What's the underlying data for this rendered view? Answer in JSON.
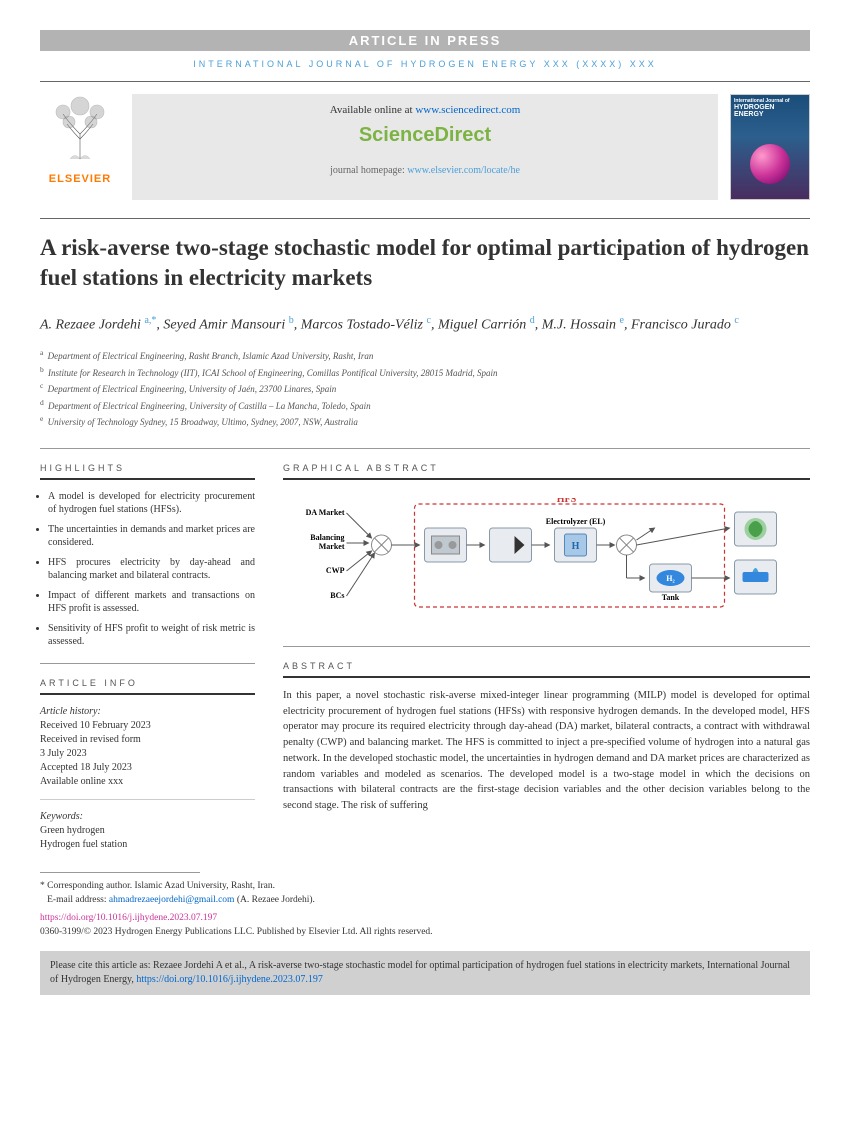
{
  "banner": "ARTICLE IN PRESS",
  "journal_header": "INTERNATIONAL JOURNAL OF HYDROGEN ENERGY XXX (XXXX) XXX",
  "elsevier_label": "ELSEVIER",
  "available_prefix": "Available online at ",
  "available_link": "www.sciencedirect.com",
  "sd_logo": "ScienceDirect",
  "homepage_prefix": "journal homepage: ",
  "homepage_link": "www.elsevier.com/locate/he",
  "cover_title_1": "International Journal of",
  "cover_title_2": "HYDROGEN",
  "cover_title_3": "ENERGY",
  "title": "A risk-averse two-stage stochastic model for optimal participation of hydrogen fuel stations in electricity markets",
  "authors_html": "A. Rezaee Jordehi <sup><a>a</a>,<a>*</a></sup>, Seyed Amir Mansouri <sup><a>b</a></sup>, Marcos Tostado-Véliz <sup><a>c</a></sup>, Miguel Carrión <sup><a>d</a></sup>, M.J. Hossain <sup><a>e</a></sup>, Francisco Jurado <sup><a>c</a></sup>",
  "affiliations": [
    {
      "key": "a",
      "text": "Department of Electrical Engineering, Rasht Branch, Islamic Azad University, Rasht, Iran"
    },
    {
      "key": "b",
      "text": "Institute for Research in Technology (IIT), ICAI School of Engineering, Comillas Pontifical University, 28015 Madrid, Spain"
    },
    {
      "key": "c",
      "text": "Department of Electrical Engineering, University of Jaén, 23700 Linares, Spain"
    },
    {
      "key": "d",
      "text": "Department of Electrical Engineering, University of Castilla – La Mancha, Toledo, Spain"
    },
    {
      "key": "e",
      "text": "University of Technology Sydney, 15 Broadway, Ultimo, Sydney, 2007, NSW, Australia"
    }
  ],
  "highlights_header": "HIGHLIGHTS",
  "highlights": [
    "A model is developed for electricity procurement of hydrogen fuel stations (HFSs).",
    "The uncertainties in demands and market prices are considered.",
    "HFS procures electricity by day-ahead and balancing market and bilateral contracts.",
    "Impact of different markets and transactions on HFS profit is assessed.",
    "Sensitivity of HFS profit to weight of risk metric is assessed."
  ],
  "graphical_header": "GRAPHICAL ABSTRACT",
  "diagram": {
    "hfs_label": "HFS",
    "da_market": "DA Market",
    "balancing": "Balancing Market",
    "cwp": "CWP",
    "bcs": "BCs",
    "electrolyzer": "Electrolyzer (EL)",
    "tank": "Tank",
    "h2": "H₂",
    "colors": {
      "hfs_border": "#cc3333",
      "box_fill": "#e8ecf0",
      "box_stroke": "#8899aa",
      "h2_blue": "#3388dd",
      "arrow": "#555"
    }
  },
  "article_info_header": "ARTICLE INFO",
  "article_history_label": "Article history:",
  "article_history": [
    "Received 10 February 2023",
    "Received in revised form",
    "3 July 2023",
    "Accepted 18 July 2023",
    "Available online xxx"
  ],
  "keywords_label": "Keywords:",
  "keywords": [
    "Green hydrogen",
    "Hydrogen fuel station"
  ],
  "abstract_header": "ABSTRACT",
  "abstract": "In this paper, a novel stochastic risk-averse mixed-integer linear programming (MILP) model is developed for optimal electricity procurement of hydrogen fuel stations (HFSs) with responsive hydrogen demands. In the developed model, HFS operator may procure its required electricity through day-ahead (DA) market, bilateral contracts, a contract with withdrawal penalty (CWP) and balancing market. The HFS is committed to inject a pre-specified volume of hydrogen into a natural gas network. In the developed stochastic model, the uncertainties in hydrogen demand and DA market prices are characterized as random variables and modeled as scenarios. The developed model is a two-stage model in which the decisions on transactions with bilateral contracts are the first-stage decision variables and the other decision variables belong to the second stage. The risk of suffering",
  "corr_label": "* Corresponding author.",
  "corr_text": " Islamic Azad University, Rasht, Iran.",
  "email_label": "E-mail address: ",
  "email": "ahmadrezaeejordehi@gmail.com",
  "email_suffix": " (A. Rezaee Jordehi).",
  "doi": "https://doi.org/10.1016/j.ijhydene.2023.07.197",
  "copyright": "0360-3199/© 2023 Hydrogen Energy Publications LLC. Published by Elsevier Ltd. All rights reserved.",
  "cite_prefix": "Please cite this article as: Rezaee Jordehi A et al., A risk-averse two-stage stochastic model for optimal participation of hydrogen fuel stations in electricity markets, International Journal of Hydrogen Energy, ",
  "cite_link": "https://doi.org/10.1016/j.ijhydene.2023.07.197"
}
